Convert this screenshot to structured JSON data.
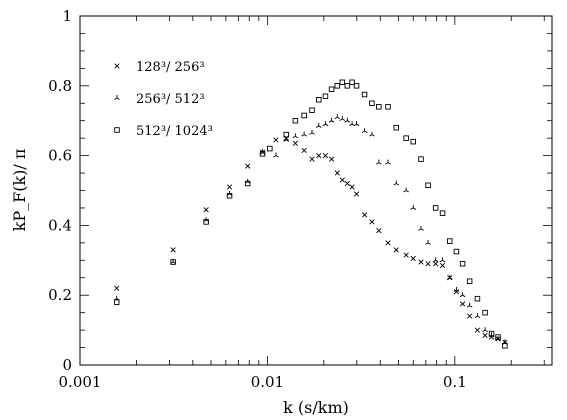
{
  "chart_data": {
    "type": "scatter",
    "title": "",
    "xlabel": "k (s/km)",
    "ylabel": "kP_F(k)/ π",
    "xscale": "log",
    "xlim": [
      0.001,
      0.33
    ],
    "ylim": [
      0,
      1
    ],
    "x_ticks": [
      {
        "value": 0.001,
        "label": "0.001"
      },
      {
        "value": 0.01,
        "label": "0.01"
      },
      {
        "value": 0.1,
        "label": "0.1"
      }
    ],
    "y_ticks": [
      {
        "value": 0,
        "label": "0"
      },
      {
        "value": 0.2,
        "label": "0.2"
      },
      {
        "value": 0.4,
        "label": "0.4"
      },
      {
        "value": 0.6,
        "label": "0.6"
      },
      {
        "value": 0.8,
        "label": "0.8"
      },
      {
        "value": 1,
        "label": "1"
      }
    ],
    "grid": false,
    "legend_position": "top-left",
    "series": [
      {
        "name": "128³/ 256³",
        "marker": "x",
        "points": [
          [
            0.00157,
            0.22
          ],
          [
            0.00314,
            0.33
          ],
          [
            0.00471,
            0.445
          ],
          [
            0.00628,
            0.51
          ],
          [
            0.00785,
            0.57
          ],
          [
            0.00942,
            0.61
          ],
          [
            0.0111,
            0.645
          ],
          [
            0.0126,
            0.65
          ],
          [
            0.0141,
            0.635
          ],
          [
            0.0157,
            0.615
          ],
          [
            0.0173,
            0.59
          ],
          [
            0.0188,
            0.6
          ],
          [
            0.0204,
            0.6
          ],
          [
            0.022,
            0.59
          ],
          [
            0.0236,
            0.55
          ],
          [
            0.0251,
            0.53
          ],
          [
            0.0267,
            0.52
          ],
          [
            0.0283,
            0.51
          ],
          [
            0.0299,
            0.49
          ],
          [
            0.033,
            0.43
          ],
          [
            0.0361,
            0.41
          ],
          [
            0.0393,
            0.385
          ],
          [
            0.044,
            0.35
          ],
          [
            0.0487,
            0.33
          ],
          [
            0.055,
            0.315
          ],
          [
            0.06,
            0.305
          ],
          [
            0.066,
            0.295
          ],
          [
            0.072,
            0.29
          ],
          [
            0.079,
            0.29
          ],
          [
            0.086,
            0.285
          ],
          [
            0.094,
            0.25
          ],
          [
            0.102,
            0.21
          ],
          [
            0.11,
            0.175
          ],
          [
            0.12,
            0.14
          ],
          [
            0.132,
            0.1
          ],
          [
            0.145,
            0.085
          ],
          [
            0.157,
            0.08
          ],
          [
            0.17,
            0.075
          ],
          [
            0.185,
            0.065
          ]
        ]
      },
      {
        "name": "256³/ 512³",
        "marker": "tri",
        "points": [
          [
            0.00157,
            0.19
          ],
          [
            0.00314,
            0.295
          ],
          [
            0.00471,
            0.415
          ],
          [
            0.00628,
            0.49
          ],
          [
            0.00785,
            0.525
          ],
          [
            0.00942,
            0.61
          ],
          [
            0.0111,
            0.6
          ],
          [
            0.0126,
            0.645
          ],
          [
            0.0141,
            0.655
          ],
          [
            0.0157,
            0.66
          ],
          [
            0.0173,
            0.665
          ],
          [
            0.0188,
            0.685
          ],
          [
            0.0204,
            0.69
          ],
          [
            0.022,
            0.7
          ],
          [
            0.0236,
            0.71
          ],
          [
            0.0251,
            0.705
          ],
          [
            0.0267,
            0.7
          ],
          [
            0.0283,
            0.69
          ],
          [
            0.0299,
            0.69
          ],
          [
            0.033,
            0.67
          ],
          [
            0.0361,
            0.66
          ],
          [
            0.0393,
            0.58
          ],
          [
            0.044,
            0.58
          ],
          [
            0.0487,
            0.52
          ],
          [
            0.055,
            0.5
          ],
          [
            0.06,
            0.45
          ],
          [
            0.066,
            0.39
          ],
          [
            0.072,
            0.35
          ],
          [
            0.079,
            0.3
          ],
          [
            0.086,
            0.3
          ],
          [
            0.094,
            0.25
          ],
          [
            0.102,
            0.215
          ],
          [
            0.11,
            0.2
          ],
          [
            0.12,
            0.17
          ],
          [
            0.132,
            0.14
          ],
          [
            0.145,
            0.1
          ],
          [
            0.157,
            0.085
          ],
          [
            0.17,
            0.075
          ],
          [
            0.185,
            0.065
          ]
        ]
      },
      {
        "name": "512³/ 1024³",
        "marker": "square",
        "points": [
          [
            0.00157,
            0.18
          ],
          [
            0.00314,
            0.295
          ],
          [
            0.00471,
            0.41
          ],
          [
            0.00628,
            0.485
          ],
          [
            0.00785,
            0.52
          ],
          [
            0.00942,
            0.605
          ],
          [
            0.0103,
            0.62
          ],
          [
            0.0126,
            0.66
          ],
          [
            0.0141,
            0.7
          ],
          [
            0.0157,
            0.715
          ],
          [
            0.0173,
            0.73
          ],
          [
            0.0188,
            0.76
          ],
          [
            0.0204,
            0.77
          ],
          [
            0.022,
            0.79
          ],
          [
            0.0236,
            0.8
          ],
          [
            0.0251,
            0.81
          ],
          [
            0.0267,
            0.8
          ],
          [
            0.0283,
            0.81
          ],
          [
            0.0299,
            0.8
          ],
          [
            0.033,
            0.775
          ],
          [
            0.0361,
            0.75
          ],
          [
            0.0393,
            0.74
          ],
          [
            0.044,
            0.74
          ],
          [
            0.0487,
            0.68
          ],
          [
            0.055,
            0.65
          ],
          [
            0.06,
            0.64
          ],
          [
            0.066,
            0.59
          ],
          [
            0.072,
            0.515
          ],
          [
            0.079,
            0.45
          ],
          [
            0.086,
            0.435
          ],
          [
            0.094,
            0.355
          ],
          [
            0.102,
            0.325
          ],
          [
            0.11,
            0.29
          ],
          [
            0.12,
            0.24
          ],
          [
            0.132,
            0.19
          ],
          [
            0.145,
            0.15
          ],
          [
            0.157,
            0.09
          ],
          [
            0.17,
            0.08
          ],
          [
            0.185,
            0.055
          ]
        ]
      }
    ]
  }
}
